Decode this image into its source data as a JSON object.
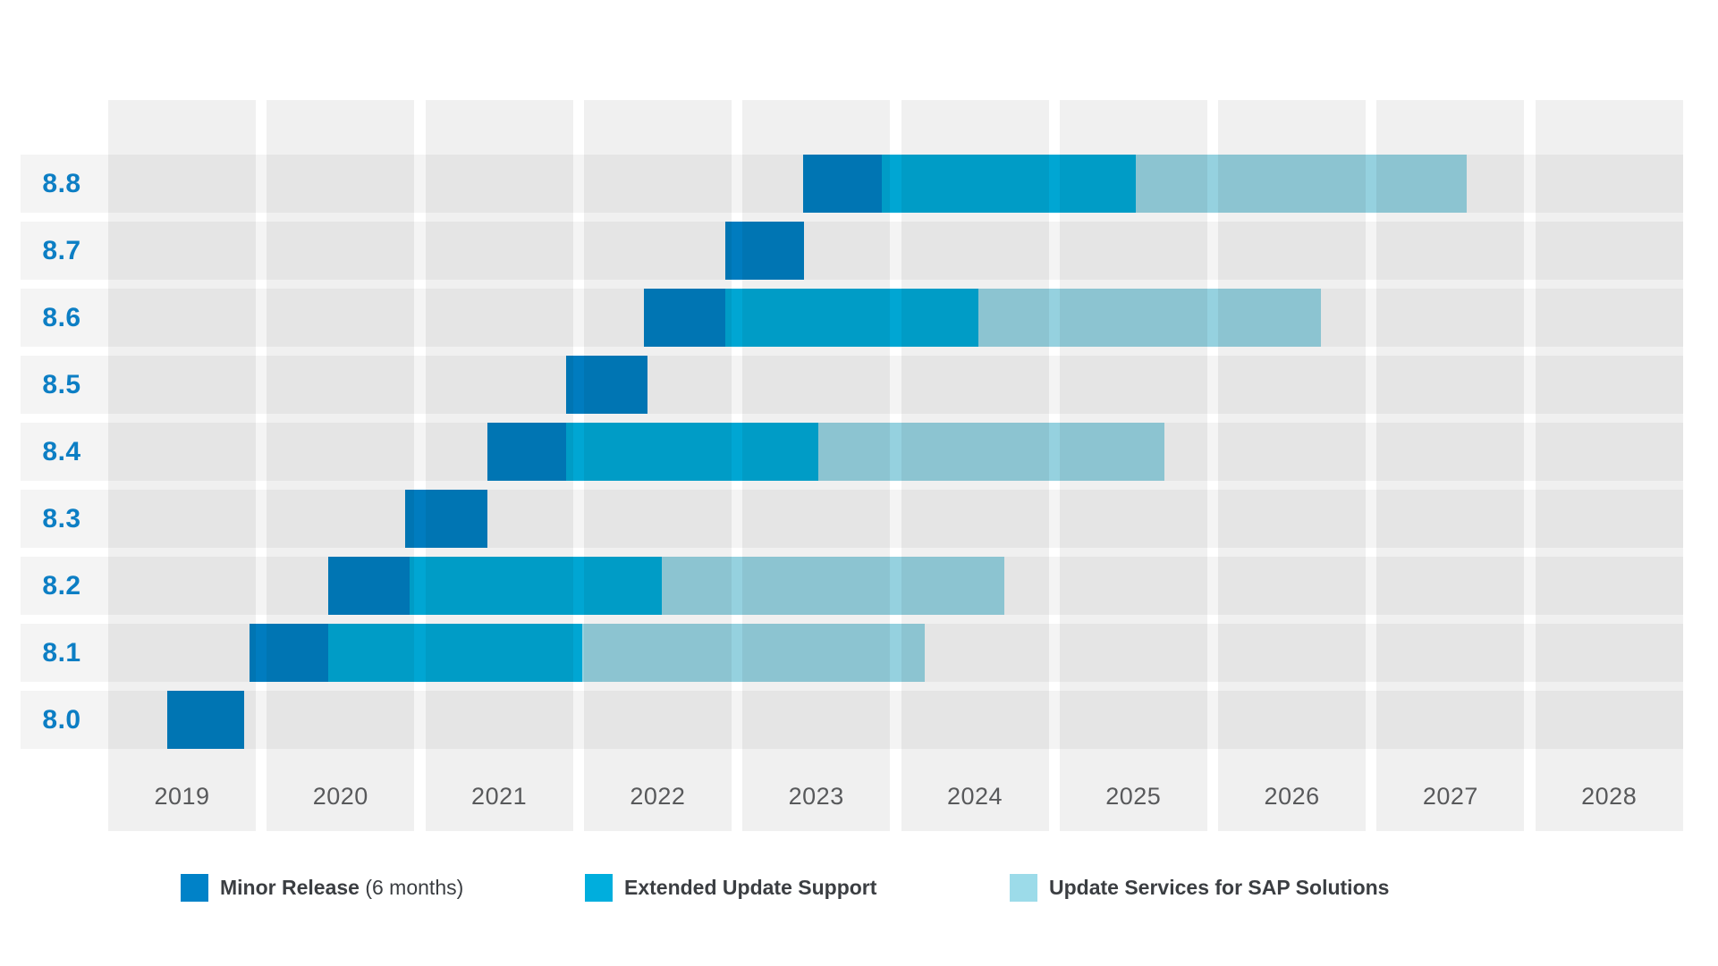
{
  "chart_data": {
    "type": "gantt",
    "title": "",
    "x_axis": {
      "years": [
        "2019",
        "2020",
        "2021",
        "2022",
        "2023",
        "2024",
        "2025",
        "2026",
        "2027",
        "2028"
      ],
      "range": [
        2019,
        2029
      ],
      "grid": "shaded-year-columns"
    },
    "y_axis": {
      "rows": [
        "8.8",
        "8.7",
        "8.6",
        "8.5",
        "8.4",
        "8.3",
        "8.2",
        "8.1",
        "8.0"
      ]
    },
    "phases": {
      "minor": {
        "label": "Minor Release",
        "suffix": "(6 months)",
        "color": "#0082C8"
      },
      "eus": {
        "label": "Extended Update Support",
        "color": "#00AEDD"
      },
      "sap": {
        "label": "Update Services for SAP Solutions",
        "color": "#9CDBE9"
      }
    },
    "rows": [
      {
        "label": "8.8",
        "segments": [
          {
            "phase": "minor",
            "start": 2023.38,
            "end": 2023.88
          },
          {
            "phase": "eus",
            "start": 2023.88,
            "end": 2025.48
          },
          {
            "phase": "sap",
            "start": 2025.48,
            "end": 2027.57
          }
        ]
      },
      {
        "label": "8.7",
        "segments": [
          {
            "phase": "minor",
            "start": 2022.89,
            "end": 2023.39
          }
        ]
      },
      {
        "label": "8.6",
        "segments": [
          {
            "phase": "minor",
            "start": 2022.38,
            "end": 2022.89
          },
          {
            "phase": "eus",
            "start": 2022.89,
            "end": 2024.49
          },
          {
            "phase": "sap",
            "start": 2024.49,
            "end": 2026.65
          }
        ]
      },
      {
        "label": "8.5",
        "segments": [
          {
            "phase": "minor",
            "start": 2021.89,
            "end": 2022.4
          }
        ]
      },
      {
        "label": "8.4",
        "segments": [
          {
            "phase": "minor",
            "start": 2021.39,
            "end": 2021.89
          },
          {
            "phase": "eus",
            "start": 2021.89,
            "end": 2023.48
          },
          {
            "phase": "sap",
            "start": 2023.48,
            "end": 2025.66
          }
        ]
      },
      {
        "label": "8.3",
        "segments": [
          {
            "phase": "minor",
            "start": 2020.87,
            "end": 2021.39
          }
        ]
      },
      {
        "label": "8.2",
        "segments": [
          {
            "phase": "minor",
            "start": 2020.39,
            "end": 2020.9
          },
          {
            "phase": "eus",
            "start": 2020.9,
            "end": 2022.49
          },
          {
            "phase": "sap",
            "start": 2022.49,
            "end": 2024.65
          }
        ]
      },
      {
        "label": "8.1",
        "segments": [
          {
            "phase": "minor",
            "start": 2019.89,
            "end": 2020.39
          },
          {
            "phase": "eus",
            "start": 2020.39,
            "end": 2021.99
          },
          {
            "phase": "sap",
            "start": 2021.99,
            "end": 2024.15
          }
        ]
      },
      {
        "label": "8.0",
        "segments": [
          {
            "phase": "minor",
            "start": 2019.37,
            "end": 2019.86
          }
        ]
      }
    ],
    "legend": [
      {
        "phase": "minor",
        "bold": "Minor Release",
        "normal": "(6 months)"
      },
      {
        "phase": "eus",
        "bold": "Extended Update Support",
        "normal": ""
      },
      {
        "phase": "sap",
        "bold": "Update Services for SAP Solutions",
        "normal": ""
      }
    ],
    "colors": {
      "year_column": "#F0F0F0",
      "row_stripe_overlay": "rgba(0,0,0,0.045)",
      "row_label_text": "#0C7EC4",
      "year_label_text": "#58595B",
      "legend_text": "#3B3E42",
      "background": "#FFFFFF"
    }
  }
}
